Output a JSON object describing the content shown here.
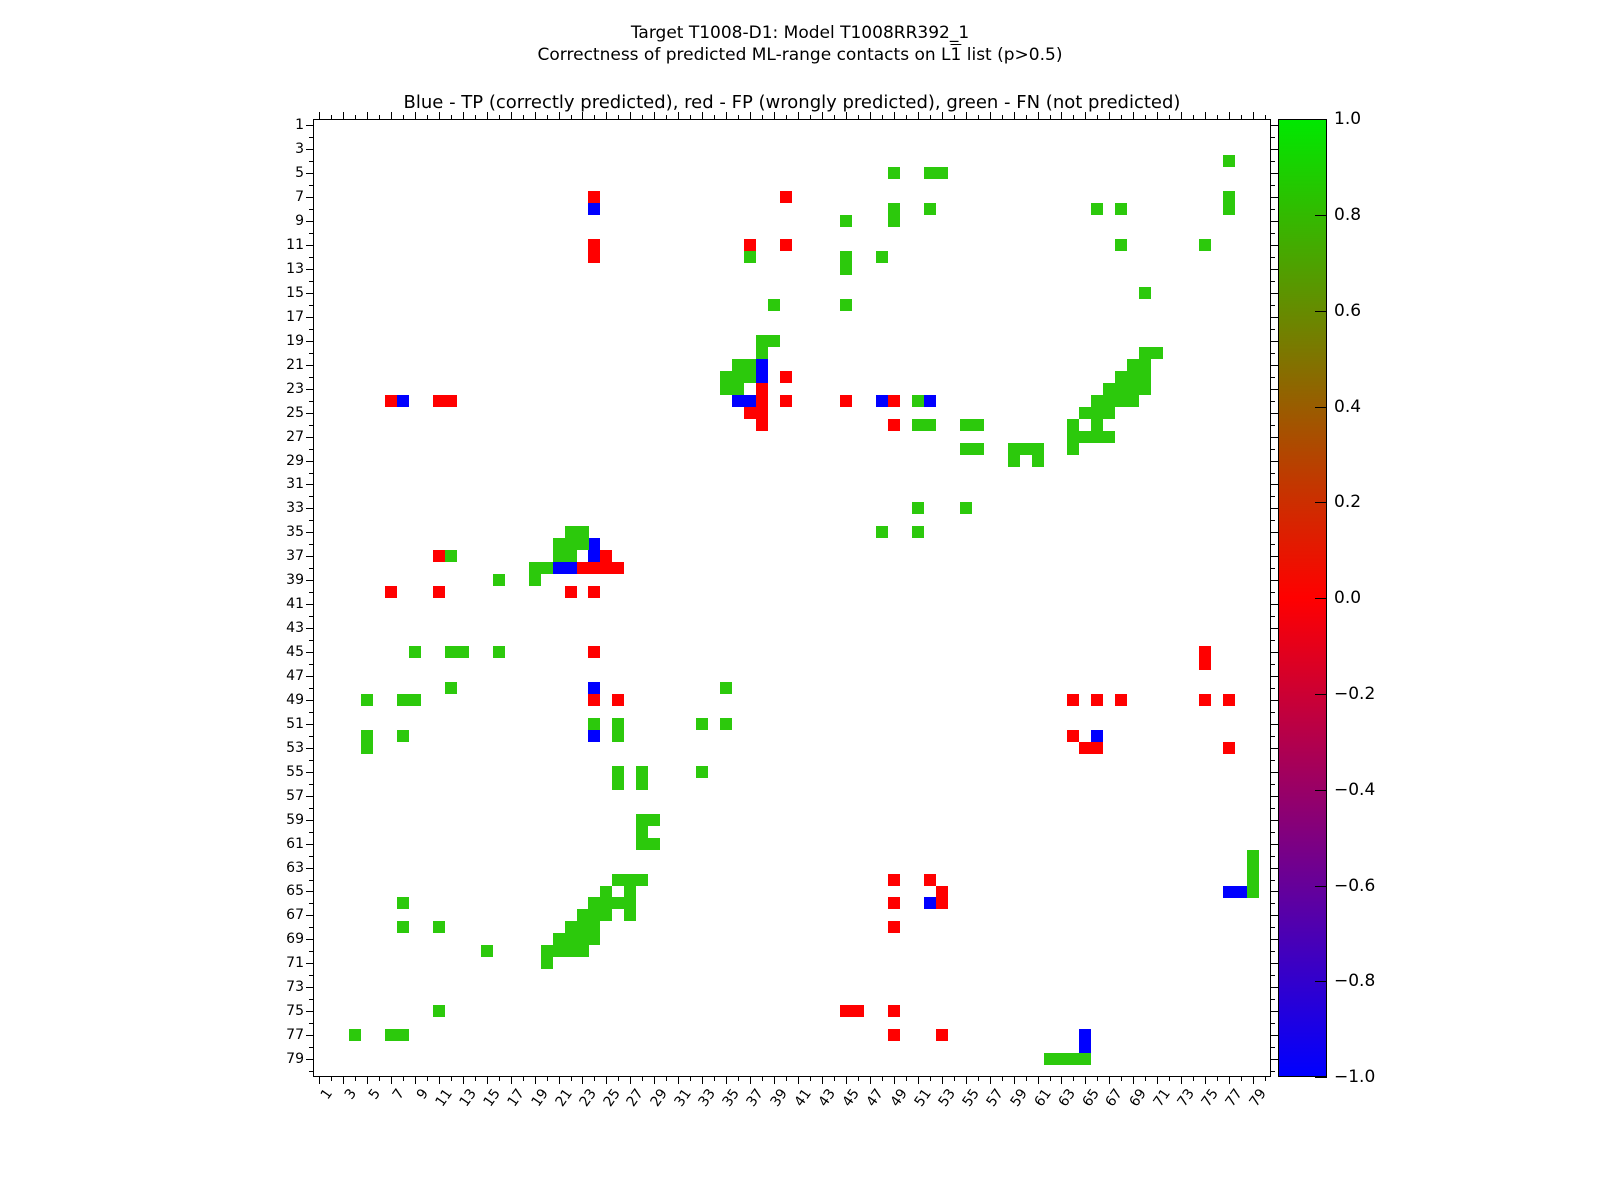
{
  "header": {
    "title_line1": "Target T1008-D1: Model T1008RR392_1",
    "title_line2_prefix": "Correctness of predicted ML-range contacts on L",
    "title_line2_overline": "1",
    "title_line2_suffix": " list (p>0.5)"
  },
  "plot": {
    "title": "Blue - TP (correctly predicted), red - FP (wrongly predicted), green - FN (not predicted)",
    "x_tick_labels": [
      "1",
      "3",
      "5",
      "7",
      "9",
      "11",
      "13",
      "15",
      "17",
      "19",
      "21",
      "23",
      "25",
      "27",
      "29",
      "31",
      "33",
      "35",
      "37",
      "39",
      "41",
      "43",
      "45",
      "47",
      "49",
      "51",
      "53",
      "55",
      "57",
      "59",
      "61",
      "63",
      "65",
      "67",
      "69",
      "71",
      "73",
      "75",
      "77",
      "79"
    ],
    "y_tick_labels": [
      "1",
      "3",
      "5",
      "7",
      "9",
      "11",
      "13",
      "15",
      "17",
      "19",
      "21",
      "23",
      "25",
      "27",
      "29",
      "31",
      "33",
      "35",
      "37",
      "39",
      "41",
      "43",
      "45",
      "47",
      "49",
      "51",
      "53",
      "55",
      "57",
      "59",
      "61",
      "63",
      "65",
      "67",
      "69",
      "71",
      "73",
      "75",
      "77",
      "79"
    ]
  },
  "colorbar": {
    "tick_labels": [
      "1.0",
      "0.8",
      "0.6",
      "0.4",
      "0.2",
      "0.0",
      "−0.2",
      "−0.4",
      "−0.6",
      "−0.8",
      "−1.0"
    ],
    "top_color": "#00e800",
    "mid_color": "#ff0000",
    "bottom_color": "#0000ff"
  },
  "chart_data": {
    "type": "heatmap",
    "title": "Blue - TP (correctly predicted), red - FP (wrongly predicted), green - FN (not predicted)",
    "grid_size": 80,
    "axis_range": [
      1,
      80
    ],
    "symmetric": true,
    "value_range": [
      -1.0,
      1.0
    ],
    "legend": {
      "TP": {
        "color": "#0000ff",
        "meaning": "correctly predicted"
      },
      "FP": {
        "color": "#ff0000",
        "meaning": "wrongly predicted"
      },
      "FN": {
        "color": "#2cc90c",
        "meaning": "not predicted"
      }
    },
    "cells": {
      "TP": [
        [
          24,
          8
        ],
        [
          36,
          24
        ],
        [
          37,
          24
        ],
        [
          38,
          21
        ],
        [
          38,
          22
        ],
        [
          48,
          24
        ],
        [
          52,
          24
        ],
        [
          66,
          52
        ],
        [
          77,
          65
        ],
        [
          78,
          65
        ]
      ],
      "FP": [
        [
          24,
          7
        ],
        [
          24,
          11
        ],
        [
          24,
          12
        ],
        [
          37,
          11
        ],
        [
          37,
          25
        ],
        [
          38,
          23
        ],
        [
          38,
          24
        ],
        [
          38,
          25
        ],
        [
          38,
          26
        ],
        [
          40,
          7
        ],
        [
          40,
          11
        ],
        [
          40,
          22
        ],
        [
          40,
          24
        ],
        [
          45,
          24
        ],
        [
          49,
          24
        ],
        [
          49,
          26
        ],
        [
          64,
          49
        ],
        [
          64,
          52
        ],
        [
          65,
          53
        ],
        [
          66,
          49
        ],
        [
          66,
          53
        ],
        [
          68,
          49
        ],
        [
          75,
          45
        ],
        [
          75,
          46
        ],
        [
          75,
          49
        ],
        [
          77,
          49
        ],
        [
          77,
          53
        ]
      ],
      "FN": [
        [
          35,
          22
        ],
        [
          35,
          23
        ],
        [
          36,
          21
        ],
        [
          36,
          22
        ],
        [
          36,
          23
        ],
        [
          37,
          12
        ],
        [
          37,
          21
        ],
        [
          37,
          22
        ],
        [
          38,
          19
        ],
        [
          38,
          20
        ],
        [
          39,
          16
        ],
        [
          39,
          19
        ],
        [
          45,
          9
        ],
        [
          45,
          12
        ],
        [
          45,
          13
        ],
        [
          45,
          16
        ],
        [
          48,
          12
        ],
        [
          48,
          35
        ],
        [
          49,
          5
        ],
        [
          49,
          8
        ],
        [
          49,
          9
        ],
        [
          51,
          24
        ],
        [
          51,
          26
        ],
        [
          51,
          33
        ],
        [
          51,
          35
        ],
        [
          52,
          5
        ],
        [
          52,
          8
        ],
        [
          52,
          26
        ],
        [
          53,
          5
        ],
        [
          55,
          26
        ],
        [
          55,
          28
        ],
        [
          55,
          33
        ],
        [
          56,
          26
        ],
        [
          56,
          28
        ],
        [
          59,
          28
        ],
        [
          59,
          29
        ],
        [
          60,
          28
        ],
        [
          61,
          28
        ],
        [
          61,
          29
        ],
        [
          64,
          26
        ],
        [
          64,
          27
        ],
        [
          64,
          28
        ],
        [
          65,
          25
        ],
        [
          65,
          27
        ],
        [
          66,
          8
        ],
        [
          66,
          24
        ],
        [
          66,
          25
        ],
        [
          66,
          26
        ],
        [
          66,
          27
        ],
        [
          67,
          23
        ],
        [
          67,
          24
        ],
        [
          67,
          25
        ],
        [
          67,
          27
        ],
        [
          68,
          8
        ],
        [
          68,
          11
        ],
        [
          68,
          22
        ],
        [
          68,
          23
        ],
        [
          68,
          24
        ],
        [
          69,
          21
        ],
        [
          69,
          22
        ],
        [
          69,
          23
        ],
        [
          69,
          24
        ],
        [
          70,
          15
        ],
        [
          70,
          20
        ],
        [
          70,
          21
        ],
        [
          70,
          22
        ],
        [
          70,
          23
        ],
        [
          71,
          20
        ],
        [
          75,
          11
        ],
        [
          77,
          4
        ],
        [
          77,
          7
        ],
        [
          77,
          8
        ],
        [
          79,
          62
        ],
        [
          79,
          63
        ],
        [
          79,
          64
        ],
        [
          79,
          65
        ]
      ]
    }
  }
}
